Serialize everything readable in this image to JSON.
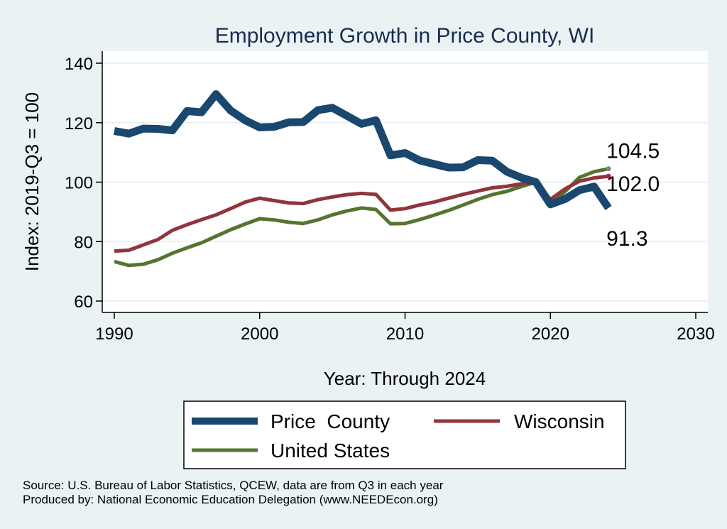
{
  "chart_data": {
    "type": "line",
    "title": "Employment Growth in Price County, WI",
    "xlabel": "Year: Through 2024",
    "ylabel": "Index: 2019-Q3 = 100",
    "xlim": [
      1990,
      2030
    ],
    "ylim": [
      60,
      140
    ],
    "x_ticks": [
      1990,
      2000,
      2010,
      2020,
      2030
    ],
    "y_ticks": [
      60,
      80,
      100,
      120,
      140
    ],
    "grid": true,
    "legend_position": "bottom",
    "x": [
      1990,
      1991,
      1992,
      1993,
      1994,
      1995,
      1996,
      1997,
      1998,
      1999,
      2000,
      2001,
      2002,
      2003,
      2004,
      2005,
      2006,
      2007,
      2008,
      2009,
      2010,
      2011,
      2012,
      2013,
      2014,
      2015,
      2016,
      2017,
      2018,
      2019,
      2020,
      2021,
      2022,
      2023,
      2024
    ],
    "series": [
      {
        "name": "Price  County",
        "color": "#1a476f",
        "values": [
          117.2,
          116.3,
          118.0,
          117.9,
          117.4,
          123.9,
          123.5,
          129.6,
          124.1,
          120.8,
          118.4,
          118.6,
          120.1,
          120.2,
          124.2,
          125.0,
          122.3,
          119.6,
          120.8,
          109.0,
          109.8,
          107.3,
          106.1,
          104.9,
          105.0,
          107.4,
          107.2,
          103.5,
          101.5,
          100.0,
          92.5,
          94.3,
          97.3,
          98.5,
          91.3
        ],
        "end_label": "91.3"
      },
      {
        "name": "Wisconsin",
        "color": "#90353b",
        "values": [
          76.8,
          77.1,
          78.9,
          80.7,
          83.8,
          85.7,
          87.4,
          89.0,
          91.1,
          93.3,
          94.6,
          93.8,
          93.0,
          92.8,
          94.1,
          95.0,
          95.8,
          96.2,
          95.9,
          90.6,
          91.1,
          92.3,
          93.3,
          94.6,
          95.9,
          97.0,
          98.1,
          98.6,
          99.4,
          100.0,
          94.2,
          97.7,
          100.3,
          101.4,
          102.0
        ],
        "end_label": "102.0"
      },
      {
        "name": "United States",
        "color": "#55752f",
        "values": [
          73.3,
          72.0,
          72.4,
          73.9,
          76.1,
          77.9,
          79.6,
          81.8,
          84.0,
          85.9,
          87.7,
          87.3,
          86.5,
          86.1,
          87.3,
          89.0,
          90.3,
          91.3,
          90.8,
          86.0,
          86.1,
          87.4,
          88.9,
          90.5,
          92.3,
          94.2,
          95.8,
          96.9,
          98.5,
          100.0,
          92.3,
          96.8,
          101.6,
          103.5,
          104.5
        ],
        "end_label": "104.5"
      }
    ]
  },
  "source_lines": [
    "Source: U.S. Bureau of Labor Statistics, QCEW, data are from Q3 in each year",
    "Produced by: National Economic Education Delegation (www.NEEDEcon.org)"
  ]
}
